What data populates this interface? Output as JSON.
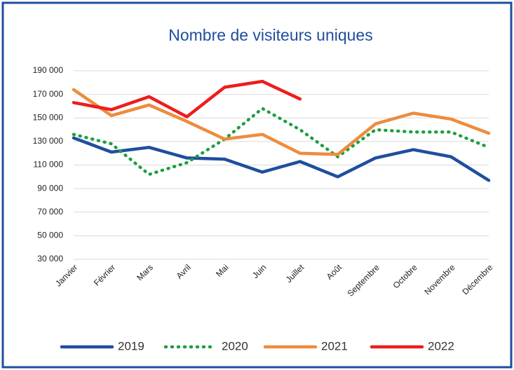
{
  "chart_data": {
    "type": "line",
    "title": "Nombre de visiteurs uniques",
    "categories": [
      "Janvier",
      "Février",
      "Mars",
      "Avril",
      "Mai",
      "Juin",
      "Juillet",
      "Août",
      "Septembre",
      "Octobre",
      "Novembre",
      "Décembre"
    ],
    "series": [
      {
        "name": "2019",
        "color": "#1f4e9e",
        "style": "solid",
        "values": [
          133000,
          121000,
          125000,
          116000,
          115000,
          104000,
          113000,
          100000,
          116000,
          123000,
          117000,
          97000
        ]
      },
      {
        "name": "2020",
        "color": "#1e9e40",
        "style": "dotted",
        "values": [
          136000,
          128000,
          102000,
          112000,
          132000,
          158000,
          140000,
          117000,
          140000,
          138000,
          138000,
          125000
        ]
      },
      {
        "name": "2021",
        "color": "#ed8c3e",
        "style": "solid",
        "values": [
          174000,
          152000,
          161000,
          147000,
          132000,
          136000,
          120000,
          119000,
          145000,
          154000,
          149000,
          137000
        ]
      },
      {
        "name": "2022",
        "color": "#ee1c1c",
        "style": "solid",
        "values": [
          163000,
          157000,
          168000,
          151000,
          176000,
          181000,
          166000,
          null,
          null,
          null,
          null,
          null
        ]
      }
    ],
    "ylim": [
      30000,
      190000
    ],
    "yticks": [
      {
        "value": 30000,
        "label": "30 000"
      },
      {
        "value": 50000,
        "label": "50 000"
      },
      {
        "value": 70000,
        "label": "70 000"
      },
      {
        "value": 90000,
        "label": "90 000"
      },
      {
        "value": 110000,
        "label": "110 000"
      },
      {
        "value": 130000,
        "label": "130 000"
      },
      {
        "value": 150000,
        "label": "150 000"
      },
      {
        "value": 170000,
        "label": "170 000"
      },
      {
        "value": 190000,
        "label": "190 000"
      }
    ],
    "grid": true,
    "legend": "bottom"
  }
}
